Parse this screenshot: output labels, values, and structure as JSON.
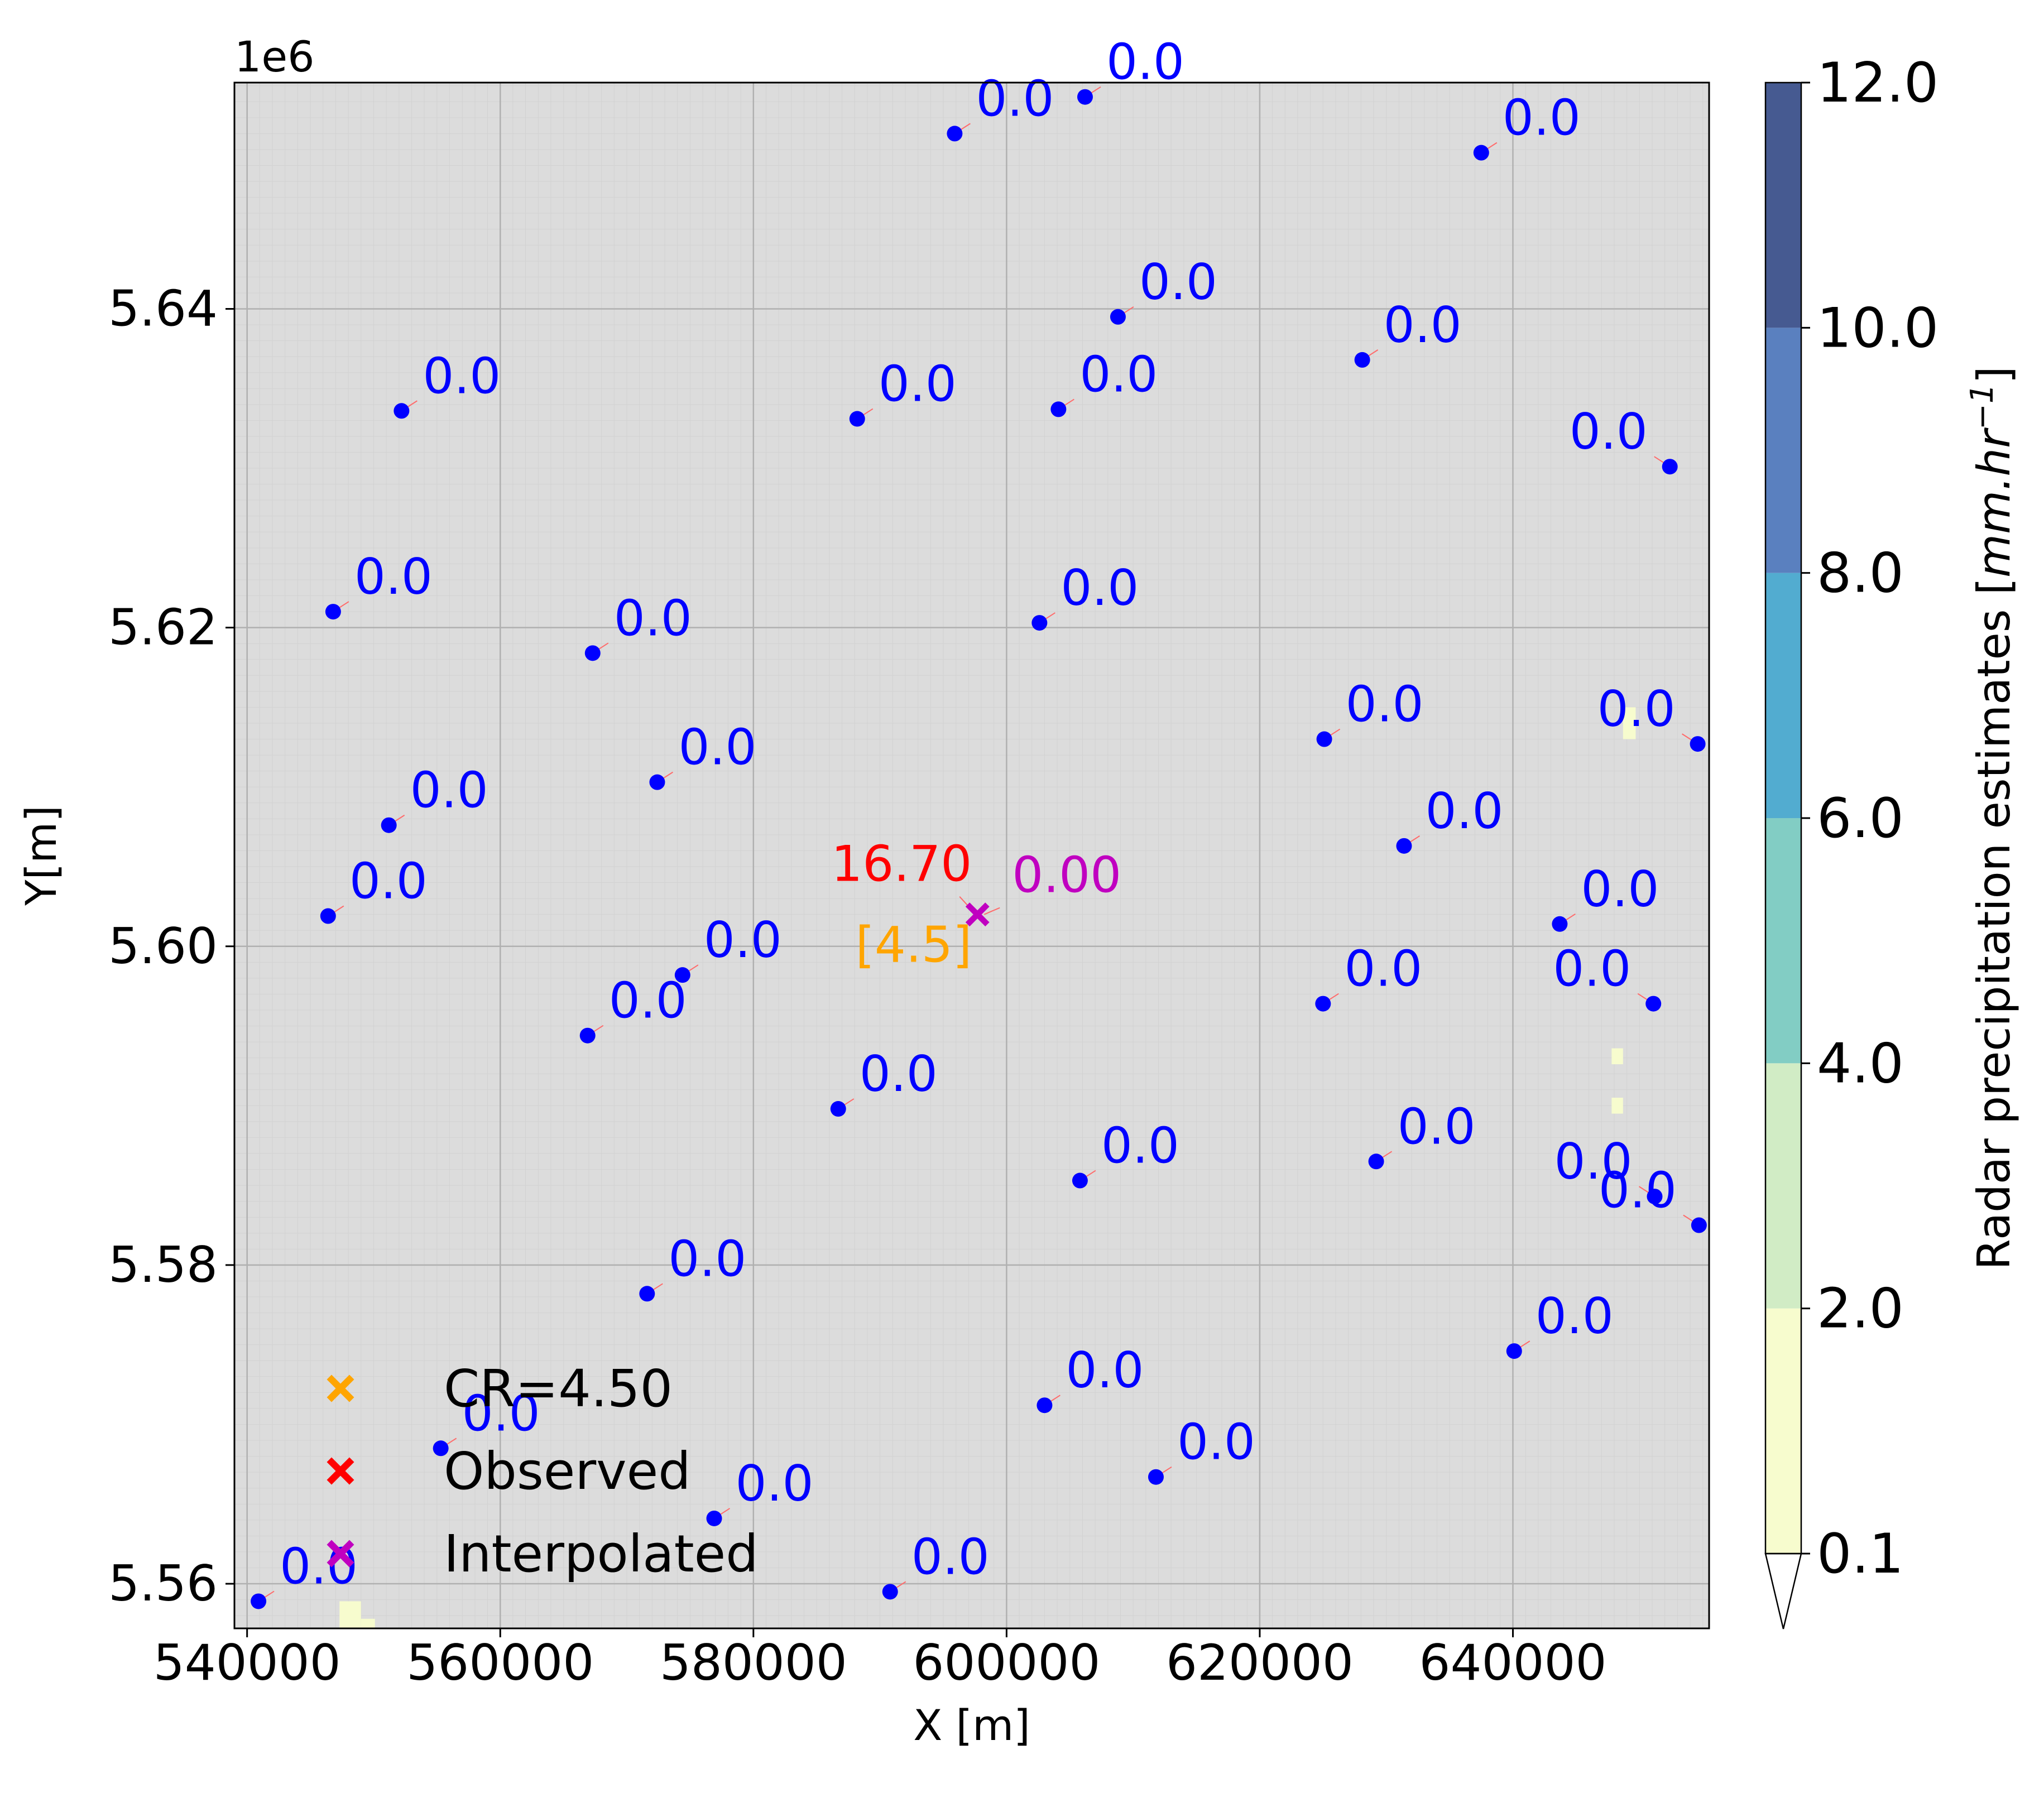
{
  "chart_data": {
    "type": "scatter",
    "offset_label": "1e6",
    "xlabel": "X [m]",
    "ylabel": "Y[m]",
    "xlim": [
      539000,
      655500
    ],
    "ylim": [
      5557200,
      5654200
    ],
    "grid": true,
    "x_ticks": [
      540000,
      560000,
      580000,
      600000,
      620000,
      640000
    ],
    "x_tick_labels": [
      "540000",
      "560000",
      "580000",
      "600000",
      "620000",
      "640000"
    ],
    "y_ticks": [
      5560000,
      5580000,
      5600000,
      5620000,
      5640000
    ],
    "y_tick_labels": [
      "5.56",
      "5.58",
      "5.60",
      "5.62",
      "5.64"
    ],
    "background_color": "#dcdcdc",
    "stations": {
      "color": "#0000ff",
      "points": [
        {
          "x": 540900,
          "y": 5558900,
          "label": "0.0"
        },
        {
          "x": 555300,
          "y": 5568500,
          "label": "0.0"
        },
        {
          "x": 576900,
          "y": 5564100,
          "label": "0.0"
        },
        {
          "x": 590800,
          "y": 5559500,
          "label": "0.0"
        },
        {
          "x": 571600,
          "y": 5578200,
          "label": "0.0"
        },
        {
          "x": 603000,
          "y": 5571200,
          "label": "0.0"
        },
        {
          "x": 611800,
          "y": 5566700,
          "label": "0.0"
        },
        {
          "x": 640100,
          "y": 5574600,
          "label": "0.0"
        },
        {
          "x": 546400,
          "y": 5601900,
          "label": "0.0"
        },
        {
          "x": 551200,
          "y": 5607600,
          "label": "0.0"
        },
        {
          "x": 546800,
          "y": 5621000,
          "label": "0.0"
        },
        {
          "x": 552200,
          "y": 5633600,
          "label": "0.0"
        },
        {
          "x": 566900,
          "y": 5594400,
          "label": "0.0"
        },
        {
          "x": 574400,
          "y": 5598200,
          "label": "0.0"
        },
        {
          "x": 567300,
          "y": 5618400,
          "label": "0.0"
        },
        {
          "x": 572400,
          "y": 5610300,
          "label": "0.0"
        },
        {
          "x": 586700,
          "y": 5589800,
          "label": "0.0"
        },
        {
          "x": 588200,
          "y": 5633100,
          "label": "0.0"
        },
        {
          "x": 602600,
          "y": 5620300,
          "label": "0.0"
        },
        {
          "x": 604100,
          "y": 5633700,
          "label": "0.0"
        },
        {
          "x": 605800,
          "y": 5585300,
          "label": "0.0"
        },
        {
          "x": 608800,
          "y": 5639500,
          "label": "0.0"
        },
        {
          "x": 595900,
          "y": 5651000,
          "label": "0.0"
        },
        {
          "x": 606200,
          "y": 5653300,
          "label": "0.0"
        },
        {
          "x": 625000,
          "y": 5596400,
          "label": "0.0"
        },
        {
          "x": 625100,
          "y": 5613000,
          "label": "0.0"
        },
        {
          "x": 629200,
          "y": 5586500,
          "label": "0.0"
        },
        {
          "x": 631400,
          "y": 5606300,
          "label": "0.0"
        },
        {
          "x": 628100,
          "y": 5636800,
          "label": "0.0"
        },
        {
          "x": 637500,
          "y": 5649800,
          "label": "0.0"
        },
        {
          "x": 643700,
          "y": 5601400,
          "label": "0.0"
        },
        {
          "x": 652400,
          "y": 5630100,
          "label": "0.0"
        },
        {
          "x": 654600,
          "y": 5612700,
          "label": "0.0"
        },
        {
          "x": 651100,
          "y": 5596400,
          "label": "0.0"
        },
        {
          "x": 651200,
          "y": 5584300,
          "label": "0.0"
        },
        {
          "x": 654700,
          "y": 5582500,
          "label": "0.0"
        }
      ]
    },
    "target": {
      "x": 597700,
      "y": 5602000,
      "observed_label": "16.70",
      "observed_color": "#ff0000",
      "interpolated_label": "0.00",
      "interpolated_color": "#c000c0",
      "cr_label": "[4.5]",
      "cr_color": "#ffa500"
    },
    "radar_cells": {
      "color": "#f7fcce",
      "cells": [
        {
          "x0": 547300,
          "x1": 549000,
          "y0": 5557200,
          "y1": 5558900
        },
        {
          "x0": 549000,
          "x1": 550100,
          "y0": 5557200,
          "y1": 5557800
        },
        {
          "x0": 648700,
          "x1": 649700,
          "y0": 5613000,
          "y1": 5615000
        },
        {
          "x0": 647800,
          "x1": 648700,
          "y0": 5589500,
          "y1": 5590500
        },
        {
          "x0": 647800,
          "x1": 648700,
          "y0": 5592600,
          "y1": 5593600
        }
      ]
    },
    "legend": {
      "position": "lower-left",
      "entries": [
        {
          "label": "CR=4.50",
          "color": "#ffa500"
        },
        {
          "label": "Observed",
          "color": "#ff0000"
        },
        {
          "label": "Interpolated",
          "color": "#c000c0"
        }
      ]
    },
    "colorbar": {
      "label": "Radar precipitation estimates [mm.hr⁻¹]",
      "label_text": "Radar precipitation estimates [",
      "label_units": "mm.hr",
      "label_exponent": "−1",
      "label_close": "]",
      "bounds": [
        0.1,
        2.0,
        4.0,
        6.0,
        8.0,
        10.0,
        12.0
      ],
      "tick_labels": [
        "0.1",
        "2.0",
        "4.0",
        "6.0",
        "8.0",
        "10.0",
        "12.0"
      ],
      "colors": [
        "#f7fcce",
        "#d1ecc5",
        "#82cdc4",
        "#52acd0",
        "#5a80bf",
        "#465a91"
      ],
      "extend": "min"
    }
  }
}
